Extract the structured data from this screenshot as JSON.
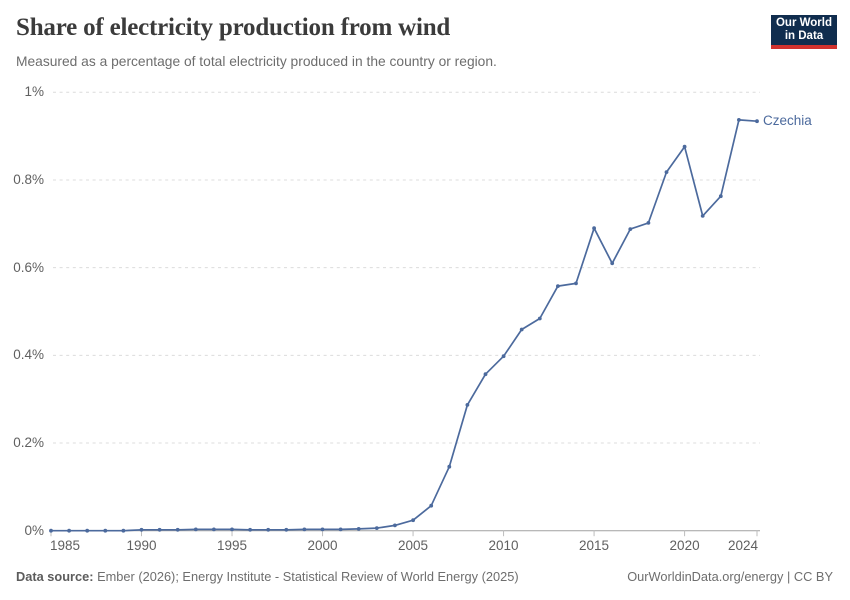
{
  "header": {
    "title": "Share of electricity production from wind",
    "subtitle": "Measured as a percentage of total electricity produced in the country or region."
  },
  "logo": {
    "line1": "Our World",
    "line2": "in Data"
  },
  "footer": {
    "source_label": "Data source:",
    "source_text": " Ember (2026); Energy Institute - Statistical Review of World Energy (2025)",
    "right_text": "OurWorldinData.org/energy | CC BY"
  },
  "colors": {
    "line": "#4c6a9d",
    "series_label": "#4c6a9d",
    "grid": "#dcdcdc",
    "axis": "#a1a1a1",
    "tick": "#bdbdbd",
    "logo_bg": "#102d4e",
    "logo_red": "#d1322e"
  },
  "chart_data": {
    "type": "line",
    "title": "Share of electricity production from wind",
    "xlabel": "",
    "ylabel": "",
    "xlim": [
      1985,
      2024
    ],
    "ylim": [
      0,
      1
    ],
    "grid": "horizontal-dashed",
    "legend_position": "end-of-line",
    "x_ticks": [
      1985,
      1990,
      1995,
      2000,
      2005,
      2010,
      2015,
      2020,
      2024
    ],
    "y_ticks": [
      {
        "value": 0,
        "label": "0%"
      },
      {
        "value": 0.2,
        "label": "0.2%"
      },
      {
        "value": 0.4,
        "label": "0.4%"
      },
      {
        "value": 0.6,
        "label": "0.6%"
      },
      {
        "value": 0.8,
        "label": "0.8%"
      },
      {
        "value": 1,
        "label": "1%"
      }
    ],
    "series": [
      {
        "name": "Czechia",
        "x": [
          1985,
          1986,
          1987,
          1988,
          1989,
          1990,
          1991,
          1992,
          1993,
          1994,
          1995,
          1996,
          1997,
          1998,
          1999,
          2000,
          2001,
          2002,
          2003,
          2004,
          2005,
          2006,
          2007,
          2008,
          2009,
          2010,
          2011,
          2012,
          2013,
          2014,
          2015,
          2016,
          2017,
          2018,
          2019,
          2020,
          2021,
          2022,
          2023,
          2024
        ],
        "values": [
          0,
          0,
          0,
          0,
          0,
          0.002,
          0.002,
          0.002,
          0.003,
          0.003,
          0.003,
          0.002,
          0.002,
          0.002,
          0.003,
          0.003,
          0.003,
          0.004,
          0.006,
          0.012,
          0.024,
          0.057,
          0.146,
          0.287,
          0.357,
          0.398,
          0.459,
          0.484,
          0.558,
          0.564,
          0.69,
          0.61,
          0.688,
          0.702,
          0.818,
          0.876,
          0.718,
          0.763,
          0.937,
          0.934
        ]
      }
    ]
  }
}
